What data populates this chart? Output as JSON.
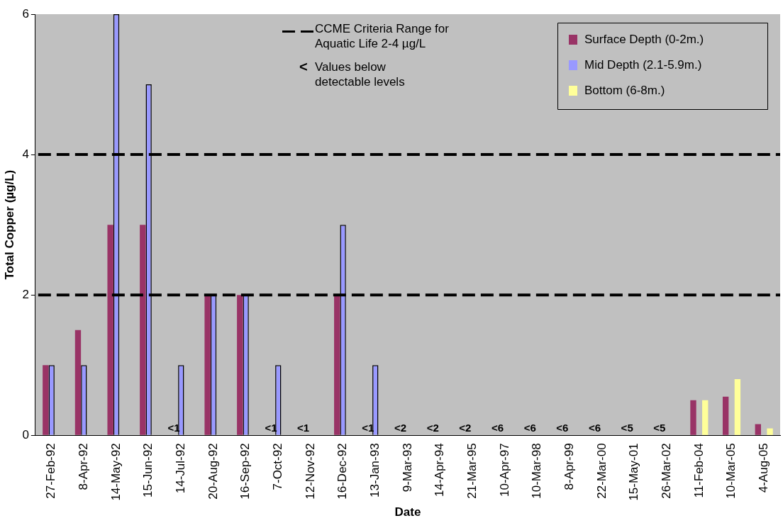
{
  "chart_data": {
    "type": "bar",
    "xlabel": "Date",
    "ylabel": "Total Copper (µg/L)",
    "categories": [
      "27-Feb-92",
      "8-Apr-92",
      "14-May-92",
      "15-Jun-92",
      "14-Jul-92",
      "20-Aug-92",
      "16-Sep-92",
      "7-Oct-92",
      "12-Nov-92",
      "16-Dec-92",
      "13-Jan-93",
      "9-Mar-93",
      "14-Apr-94",
      "21-Mar-95",
      "10-Apr-97",
      "10-Mar-98",
      "8-Apr-99",
      "22-Mar-00",
      "15-May-01",
      "26-Mar-02",
      "11-Feb-04",
      "10-Mar-05",
      "4-Aug-05"
    ],
    "series": [
      {
        "name": "Surface Depth (0-2m.)",
        "color": "#993366",
        "values": [
          1,
          1.5,
          3,
          3,
          null,
          2,
          2,
          null,
          null,
          2,
          null,
          null,
          null,
          null,
          null,
          null,
          null,
          null,
          null,
          null,
          0.5,
          0.55,
          0.16
        ],
        "value_labels": [
          null,
          null,
          null,
          null,
          "<1",
          null,
          null,
          "<1",
          "<1",
          null,
          "<1",
          "<2",
          "<2",
          "<2",
          "<6",
          "<6",
          "<6",
          "<6",
          "<5",
          "<5",
          null,
          null,
          null
        ]
      },
      {
        "name": "Mid Depth (2.1-5.9m.)",
        "color": "#9999ff",
        "values": [
          1,
          1,
          6,
          5,
          1,
          2,
          2,
          1,
          null,
          3,
          1,
          null,
          null,
          null,
          null,
          null,
          null,
          null,
          null,
          null,
          null,
          null,
          null
        ]
      },
      {
        "name": "Bottom (6-8m.)",
        "color": "#ffff99",
        "values": [
          null,
          null,
          null,
          null,
          null,
          null,
          null,
          null,
          null,
          null,
          null,
          null,
          null,
          null,
          null,
          null,
          null,
          null,
          null,
          null,
          0.5,
          0.8,
          0.1
        ]
      }
    ],
    "ylim": [
      0,
      6
    ],
    "yticks": [
      0,
      2,
      4,
      6
    ],
    "grid": false,
    "legend": "top right",
    "ref_lines": [
      {
        "axis": "y",
        "value": 2,
        "color": "#000000",
        "line_style": "dashed"
      },
      {
        "axis": "y",
        "value": 4,
        "color": "#000000",
        "line_style": "dashed"
      }
    ],
    "annotations": [
      "CCME Criteria Range for Aquatic Life 2-4 µg/L",
      "<",
      "Values below detectable levels"
    ]
  }
}
